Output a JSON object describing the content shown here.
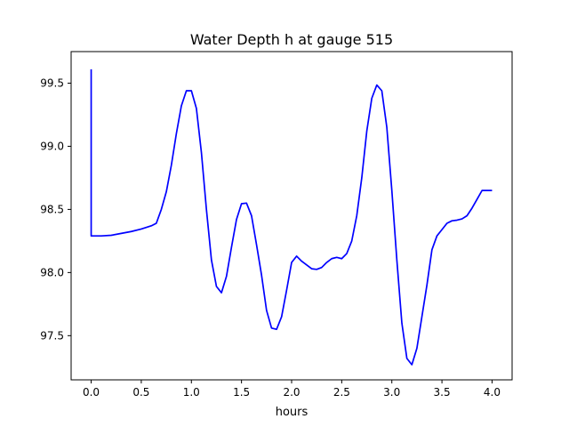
{
  "chart_data": {
    "type": "line",
    "title": "Water Depth h at gauge 515",
    "xlabel": "hours",
    "ylabel": "",
    "xlim": [
      -0.2,
      4.2
    ],
    "ylim": [
      97.15,
      99.75
    ],
    "xticks": [
      0.0,
      0.5,
      1.0,
      1.5,
      2.0,
      2.5,
      3.0,
      3.5,
      4.0
    ],
    "xtick_labels": [
      "0.0",
      "0.5",
      "1.0",
      "1.5",
      "2.0",
      "2.5",
      "3.0",
      "3.5",
      "4.0"
    ],
    "yticks": [
      97.5,
      98.0,
      98.5,
      99.0,
      99.5
    ],
    "ytick_labels": [
      "97.5",
      "98.0",
      "98.5",
      "99.0",
      "99.5"
    ],
    "grid": false,
    "legend": "none",
    "series": [
      {
        "color": "#0000ff",
        "x": [
          0.0,
          0.0,
          0.0,
          0.1,
          0.2,
          0.3,
          0.4,
          0.5,
          0.6,
          0.65,
          0.7,
          0.75,
          0.8,
          0.85,
          0.9,
          0.95,
          1.0,
          1.05,
          1.1,
          1.15,
          1.2,
          1.25,
          1.3,
          1.35,
          1.4,
          1.45,
          1.5,
          1.55,
          1.6,
          1.65,
          1.7,
          1.75,
          1.8,
          1.85,
          1.9,
          1.95,
          2.0,
          2.05,
          2.1,
          2.15,
          2.2,
          2.25,
          2.3,
          2.35,
          2.4,
          2.45,
          2.5,
          2.55,
          2.6,
          2.65,
          2.7,
          2.75,
          2.8,
          2.85,
          2.9,
          2.95,
          3.0,
          3.05,
          3.1,
          3.15,
          3.2,
          3.25,
          3.3,
          3.35,
          3.4,
          3.45,
          3.5,
          3.55,
          3.6,
          3.65,
          3.7,
          3.75,
          3.8,
          3.85,
          3.9,
          3.95,
          4.0
        ],
        "y": [
          99.61,
          98.29,
          98.29,
          98.29,
          98.295,
          98.31,
          98.325,
          98.345,
          98.37,
          98.39,
          98.5,
          98.64,
          98.85,
          99.1,
          99.32,
          99.44,
          99.44,
          99.3,
          98.95,
          98.5,
          98.1,
          97.89,
          97.84,
          97.97,
          98.2,
          98.42,
          98.545,
          98.55,
          98.45,
          98.22,
          97.98,
          97.7,
          97.56,
          97.55,
          97.65,
          97.86,
          98.08,
          98.13,
          98.09,
          98.06,
          98.03,
          98.025,
          98.04,
          98.08,
          98.11,
          98.12,
          98.11,
          98.15,
          98.25,
          98.45,
          98.75,
          99.12,
          99.38,
          99.485,
          99.44,
          99.15,
          98.65,
          98.1,
          97.6,
          97.32,
          97.27,
          97.4,
          97.65,
          97.9,
          98.18,
          98.29,
          98.34,
          98.39,
          98.41,
          98.415,
          98.425,
          98.45,
          98.51,
          98.58,
          98.65,
          98.65,
          98.65
        ]
      }
    ]
  }
}
